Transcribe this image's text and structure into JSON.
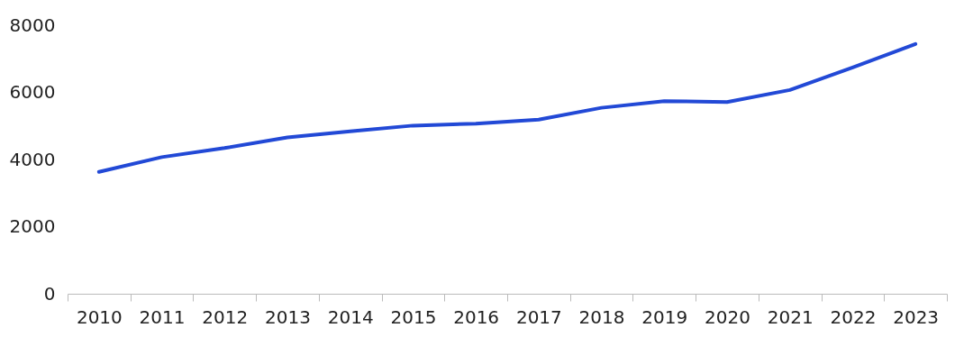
{
  "chart_data": {
    "type": "line",
    "categories": [
      "2010",
      "2011",
      "2012",
      "2013",
      "2014",
      "2015",
      "2016",
      "2017",
      "2018",
      "2019",
      "2020",
      "2021",
      "2022",
      "2023"
    ],
    "series": [
      {
        "color": "#2249d6",
        "values": [
          3630,
          4070,
          4340,
          4660,
          4840,
          5010,
          5070,
          5190,
          5540,
          5740,
          5710,
          6070,
          6740,
          7440
        ]
      }
    ],
    "ylim": [
      0,
      8000
    ],
    "yticks": [
      0,
      2000,
      4000,
      6000,
      8000
    ],
    "grid": false,
    "legend": false,
    "marker": "none",
    "line_style": "solid"
  }
}
